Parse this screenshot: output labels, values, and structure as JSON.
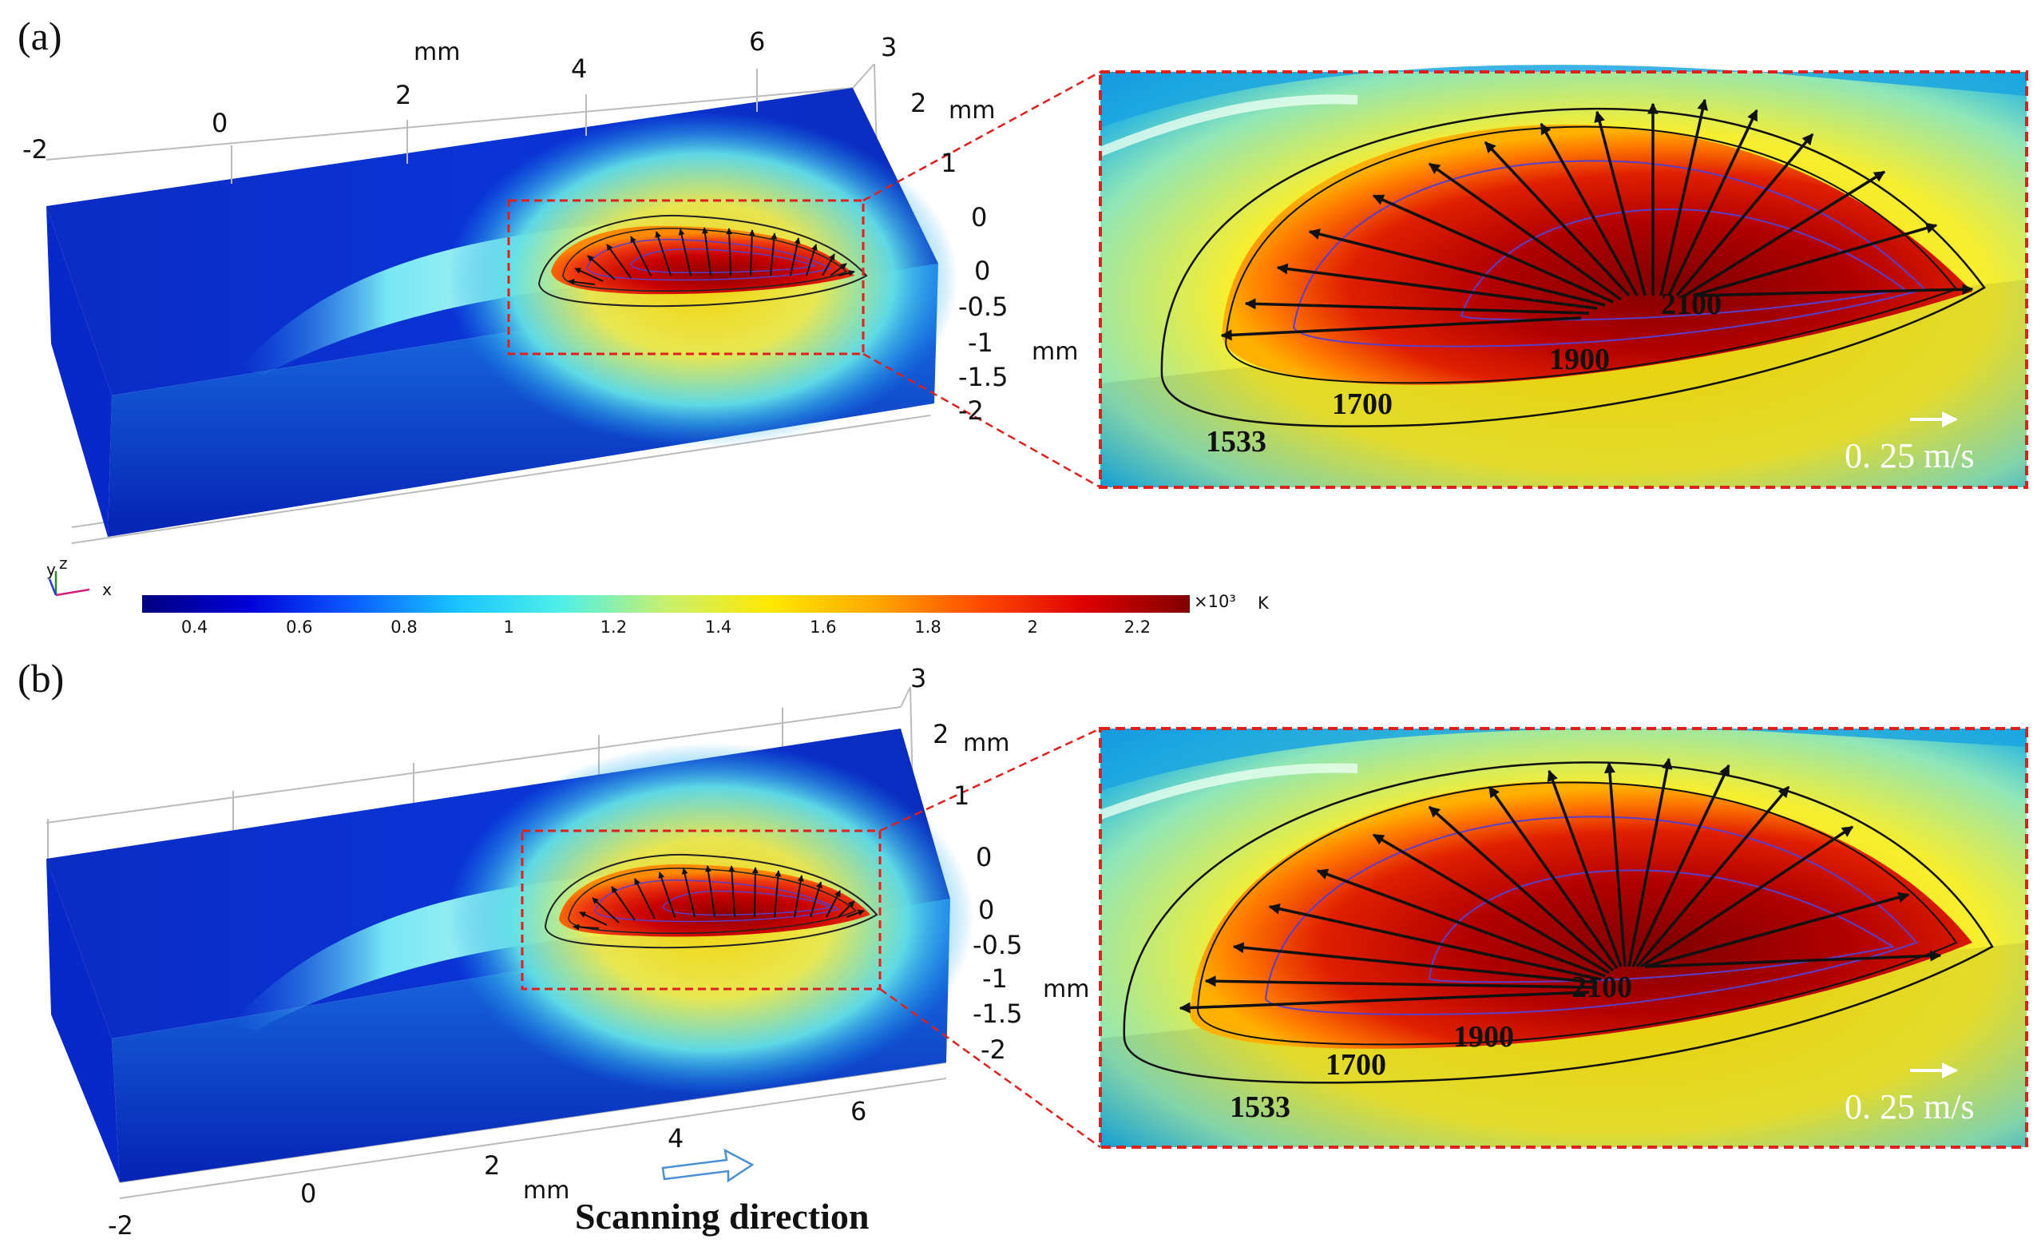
{
  "colormap": {
    "stops": [
      "#00007f",
      "#0000d8",
      "#0a5cff",
      "#19c4ff",
      "#4ff0e8",
      "#c8f06e",
      "#ffe800",
      "#ffa800",
      "#ff4a00",
      "#dd0000",
      "#800000"
    ],
    "ticks": [
      "0.4",
      "0.6",
      "0.8",
      "1",
      "1.2",
      "1.4",
      "1.6",
      "1.8",
      "2",
      "2.2"
    ],
    "multiplier": "×10³",
    "unit": "K"
  },
  "triad": {
    "x": "x",
    "y": "y",
    "z": "z"
  },
  "panel_a": {
    "label": "(a)",
    "top_axis_unit": "mm",
    "top_axis_ticks": [
      "-2",
      "0",
      "2",
      "4",
      "6"
    ],
    "width_axis_ticks": [
      "3",
      "2",
      "1",
      "0"
    ],
    "width_axis_unit": "mm",
    "depth_axis_ticks": [
      "0",
      "-0.5",
      "-1",
      "-1.5",
      "-2"
    ],
    "depth_axis_unit": "mm",
    "contours": [
      "2100",
      "1900",
      "1700",
      "1533"
    ],
    "velocity_scale": "0. 25 m/s"
  },
  "panel_b": {
    "label": "(b)",
    "width_axis_ticks": [
      "3",
      "2",
      "1",
      "0"
    ],
    "width_axis_unit": "mm",
    "depth_axis_ticks": [
      "0",
      "-0.5",
      "-1",
      "-1.5",
      "-2"
    ],
    "depth_axis_unit": "mm",
    "bottom_axis_ticks": [
      "-2",
      "0",
      "2",
      "4",
      "6"
    ],
    "bottom_axis_unit": "mm",
    "contours": [
      "2100",
      "1900",
      "1700",
      "1533"
    ],
    "velocity_scale": "0. 25 m/s",
    "scanning_direction": "Scanning direction"
  }
}
